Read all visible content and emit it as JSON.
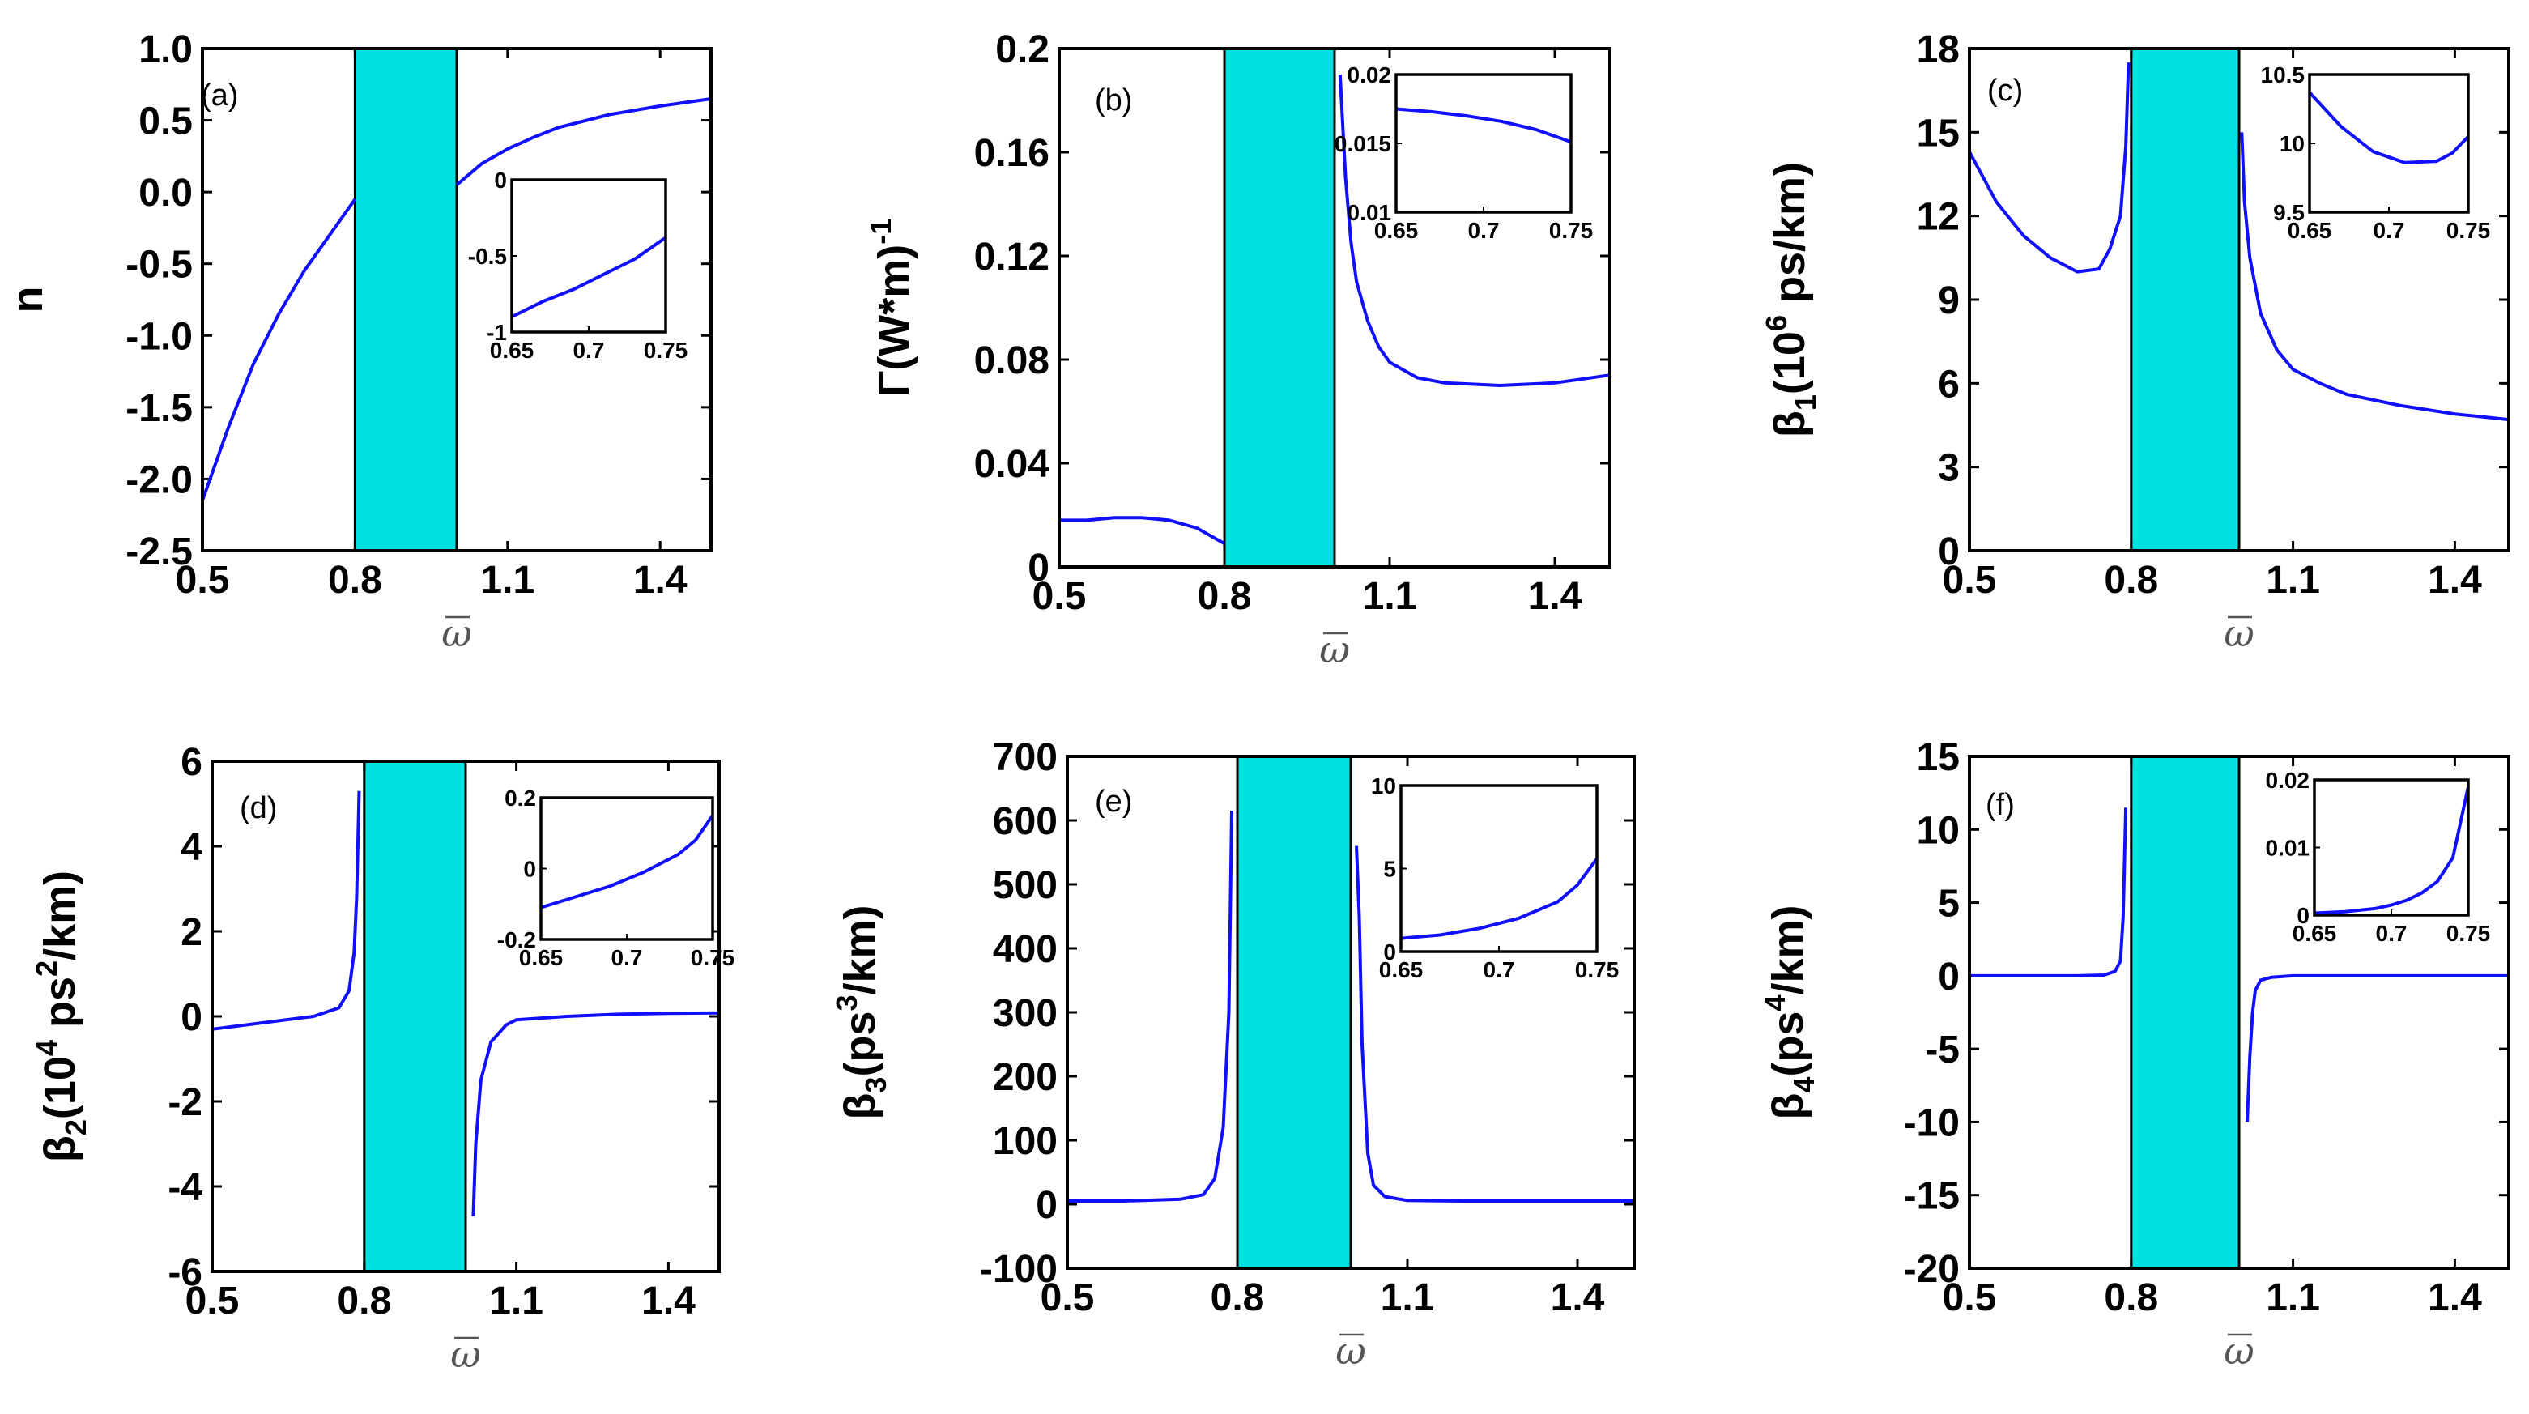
{
  "chart_data": [
    {
      "type": "line",
      "panel_label": "(a)",
      "ylabel": "n",
      "xlabel": "ω̄",
      "xlim": [
        0.5,
        1.5
      ],
      "ylim": [
        -2.5,
        1.0
      ],
      "xticks": [
        "0.5",
        "0.8",
        "1.1",
        "1.4"
      ],
      "yticks": [
        "-2.5",
        "-2.0",
        "-1.5",
        "-1.0",
        "-0.5",
        "0.0",
        "0.5",
        "1.0"
      ],
      "band": [
        0.8,
        1.0
      ],
      "series": [
        {
          "name": "lower",
          "x": [
            0.5,
            0.55,
            0.6,
            0.65,
            0.7,
            0.75,
            0.8
          ],
          "y": [
            -2.15,
            -1.65,
            -1.2,
            -0.85,
            -0.55,
            -0.3,
            -0.05
          ]
        },
        {
          "name": "upper",
          "x": [
            1.0,
            1.05,
            1.1,
            1.15,
            1.2,
            1.3,
            1.4,
            1.5
          ],
          "y": [
            0.05,
            0.2,
            0.3,
            0.38,
            0.45,
            0.54,
            0.6,
            0.65
          ]
        }
      ],
      "inset": {
        "xlim": [
          0.65,
          0.75
        ],
        "ylim": [
          -1,
          0
        ],
        "xticks": [
          "0.65",
          "0.7",
          "0.75"
        ],
        "yticks": [
          "-1",
          "-0.5",
          "0"
        ],
        "x": [
          0.65,
          0.67,
          0.69,
          0.71,
          0.73,
          0.75
        ],
        "y": [
          -0.9,
          -0.8,
          -0.72,
          -0.62,
          -0.52,
          -0.38
        ]
      }
    },
    {
      "type": "line",
      "panel_label": "(b)",
      "ylabel": "Γ(W*m)",
      "ylabel_sup": "-1",
      "xlabel": "ω̄",
      "xlim": [
        0.5,
        1.5
      ],
      "ylim": [
        0,
        0.2
      ],
      "xticks": [
        "0.5",
        "0.8",
        "1.1",
        "1.4"
      ],
      "yticks": [
        "0",
        "0.04",
        "0.08",
        "0.12",
        "0.16",
        "0.2"
      ],
      "band": [
        0.8,
        1.0
      ],
      "series": [
        {
          "name": "lower",
          "x": [
            0.5,
            0.55,
            0.6,
            0.65,
            0.7,
            0.75,
            0.8
          ],
          "y": [
            0.018,
            0.018,
            0.019,
            0.019,
            0.018,
            0.015,
            0.009
          ]
        },
        {
          "name": "upper",
          "x": [
            1.01,
            1.015,
            1.02,
            1.03,
            1.04,
            1.06,
            1.08,
            1.1,
            1.15,
            1.2,
            1.3,
            1.4,
            1.5
          ],
          "y": [
            0.19,
            0.17,
            0.15,
            0.125,
            0.11,
            0.095,
            0.085,
            0.079,
            0.073,
            0.071,
            0.07,
            0.071,
            0.074
          ]
        }
      ],
      "inset": {
        "xlim": [
          0.65,
          0.75
        ],
        "ylim": [
          0.01,
          0.02
        ],
        "xticks": [
          "0.65",
          "0.7",
          "0.75"
        ],
        "yticks": [
          "0.01",
          "0.015",
          "0.02"
        ],
        "x": [
          0.65,
          0.67,
          0.69,
          0.71,
          0.73,
          0.75
        ],
        "y": [
          0.0175,
          0.0173,
          0.017,
          0.0166,
          0.016,
          0.0151
        ]
      }
    },
    {
      "type": "line",
      "panel_label": "(c)",
      "ylabel": "β",
      "ylabel_sub": "1",
      "ylabel_rest1": "(10",
      "ylabel_sup": "6",
      "ylabel_rest2": " ps/km)",
      "xlabel": "ω̄",
      "xlim": [
        0.5,
        1.5
      ],
      "ylim": [
        0,
        18
      ],
      "xticks": [
        "0.5",
        "0.8",
        "1.1",
        "1.4"
      ],
      "yticks": [
        "0",
        "3",
        "6",
        "9",
        "12",
        "15",
        "18"
      ],
      "band": [
        0.8,
        1.0
      ],
      "series": [
        {
          "name": "lower",
          "x": [
            0.5,
            0.55,
            0.6,
            0.65,
            0.7,
            0.74,
            0.76,
            0.78,
            0.79,
            0.795
          ],
          "y": [
            14.3,
            12.5,
            11.3,
            10.5,
            10.0,
            10.1,
            10.8,
            12.0,
            14.5,
            17.5
          ]
        },
        {
          "name": "upper",
          "x": [
            1.005,
            1.01,
            1.02,
            1.04,
            1.07,
            1.1,
            1.15,
            1.2,
            1.3,
            1.4,
            1.5
          ],
          "y": [
            15.0,
            12.5,
            10.5,
            8.5,
            7.2,
            6.5,
            6.0,
            5.6,
            5.2,
            4.9,
            4.7
          ]
        }
      ],
      "inset": {
        "xlim": [
          0.65,
          0.75
        ],
        "ylim": [
          9.5,
          10.5
        ],
        "xticks": [
          "0.65",
          "0.7",
          "0.75"
        ],
        "yticks": [
          "9.5",
          "10",
          "10.5"
        ],
        "x": [
          0.65,
          0.67,
          0.69,
          0.71,
          0.73,
          0.74,
          0.75
        ],
        "y": [
          10.37,
          10.12,
          9.94,
          9.86,
          9.87,
          9.93,
          10.05
        ]
      }
    },
    {
      "type": "line",
      "panel_label": "(d)",
      "ylabel": "β",
      "ylabel_sub": "2",
      "ylabel_rest1": "(10",
      "ylabel_sup": "4",
      "ylabel_rest2": " ps",
      "ylabel_sup2": "2",
      "ylabel_rest3": "/km)",
      "xlabel": "ω̄",
      "xlim": [
        0.5,
        1.5
      ],
      "ylim": [
        -6,
        6
      ],
      "xticks": [
        "0.5",
        "0.8",
        "1.1",
        "1.4"
      ],
      "yticks": [
        "-6",
        "-4",
        "-2",
        "0",
        "2",
        "4",
        "6"
      ],
      "band": [
        0.8,
        1.0
      ],
      "series": [
        {
          "name": "lower",
          "x": [
            0.5,
            0.6,
            0.7,
            0.75,
            0.77,
            0.78,
            0.785,
            0.79
          ],
          "y": [
            -0.3,
            -0.15,
            0.0,
            0.2,
            0.6,
            1.5,
            2.8,
            5.3
          ]
        },
        {
          "name": "upper",
          "x": [
            1.015,
            1.02,
            1.03,
            1.05,
            1.08,
            1.1,
            1.2,
            1.3,
            1.4,
            1.5
          ],
          "y": [
            -4.7,
            -3.0,
            -1.5,
            -0.6,
            -0.2,
            -0.08,
            0.0,
            0.05,
            0.07,
            0.08
          ]
        }
      ],
      "inset": {
        "xlim": [
          0.65,
          0.75
        ],
        "ylim": [
          -0.2,
          0.2
        ],
        "xticks": [
          "0.65",
          "0.7",
          "0.75"
        ],
        "yticks": [
          "-0.2",
          "0",
          "0.2"
        ],
        "x": [
          0.65,
          0.67,
          0.69,
          0.71,
          0.73,
          0.74,
          0.75
        ],
        "y": [
          -0.11,
          -0.08,
          -0.05,
          -0.01,
          0.04,
          0.08,
          0.15
        ]
      }
    },
    {
      "type": "line",
      "panel_label": "(e)",
      "ylabel": "β",
      "ylabel_sub": "3",
      "ylabel_rest1": "(ps",
      "ylabel_sup": "3",
      "ylabel_rest2": "/km)",
      "xlabel": "ω̄",
      "xlim": [
        0.5,
        1.5
      ],
      "ylim": [
        -100,
        700
      ],
      "xticks": [
        "0.5",
        "0.8",
        "1.1",
        "1.4"
      ],
      "yticks": [
        "-100",
        "0",
        "100",
        "200",
        "300",
        "400",
        "500",
        "600",
        "700"
      ],
      "band": [
        0.8,
        1.0
      ],
      "series": [
        {
          "name": "lower",
          "x": [
            0.5,
            0.6,
            0.7,
            0.74,
            0.76,
            0.775,
            0.785,
            0.79
          ],
          "y": [
            5,
            5,
            8,
            15,
            40,
            120,
            300,
            615
          ]
        },
        {
          "name": "upper",
          "x": [
            1.01,
            1.015,
            1.02,
            1.03,
            1.04,
            1.06,
            1.1,
            1.2,
            1.3,
            1.4,
            1.5
          ],
          "y": [
            560,
            450,
            250,
            80,
            30,
            12,
            6,
            5,
            5,
            5,
            5
          ]
        }
      ],
      "inset": {
        "xlim": [
          0.65,
          0.75
        ],
        "ylim": [
          0,
          10
        ],
        "xticks": [
          "0.65",
          "0.7",
          "0.75"
        ],
        "yticks": [
          "0",
          "5",
          "10"
        ],
        "x": [
          0.65,
          0.67,
          0.69,
          0.71,
          0.73,
          0.74,
          0.75
        ],
        "y": [
          0.8,
          1.0,
          1.4,
          2.0,
          3.0,
          4.0,
          5.6
        ]
      }
    },
    {
      "type": "line",
      "panel_label": "(f)",
      "ylabel": "β",
      "ylabel_sub": "4",
      "ylabel_rest1": "(ps",
      "ylabel_sup": "4",
      "ylabel_rest2": "/km)",
      "xlabel": "ω̄",
      "xlim": [
        0.5,
        1.5
      ],
      "ylim": [
        -20,
        15
      ],
      "xticks": [
        "0.5",
        "0.8",
        "1.1",
        "1.4"
      ],
      "yticks": [
        "-20",
        "-15",
        "-10",
        "-5",
        "0",
        "5",
        "10",
        "15"
      ],
      "band": [
        0.8,
        1.0
      ],
      "series": [
        {
          "name": "lower",
          "x": [
            0.5,
            0.6,
            0.7,
            0.75,
            0.77,
            0.78,
            0.785,
            0.79
          ],
          "y": [
            0,
            0,
            0,
            0.05,
            0.3,
            1.0,
            4.0,
            11.5
          ]
        },
        {
          "name": "upper",
          "x": [
            1.015,
            1.02,
            1.025,
            1.03,
            1.04,
            1.06,
            1.1,
            1.2,
            1.3,
            1.4,
            1.5
          ],
          "y": [
            -10,
            -5.5,
            -2.5,
            -1.0,
            -0.3,
            -0.1,
            0,
            0,
            0,
            0,
            0
          ]
        }
      ],
      "inset": {
        "xlim": [
          0.65,
          0.75
        ],
        "ylim": [
          0,
          0.02
        ],
        "xticks": [
          "0.65",
          "0.7",
          "0.75"
        ],
        "yticks": [
          "0",
          "0.01",
          "0.02"
        ],
        "x": [
          0.65,
          0.67,
          0.69,
          0.7,
          0.71,
          0.72,
          0.73,
          0.74,
          0.75
        ],
        "y": [
          0.0003,
          0.0005,
          0.001,
          0.0015,
          0.0022,
          0.0033,
          0.005,
          0.0085,
          0.019
        ]
      }
    }
  ]
}
